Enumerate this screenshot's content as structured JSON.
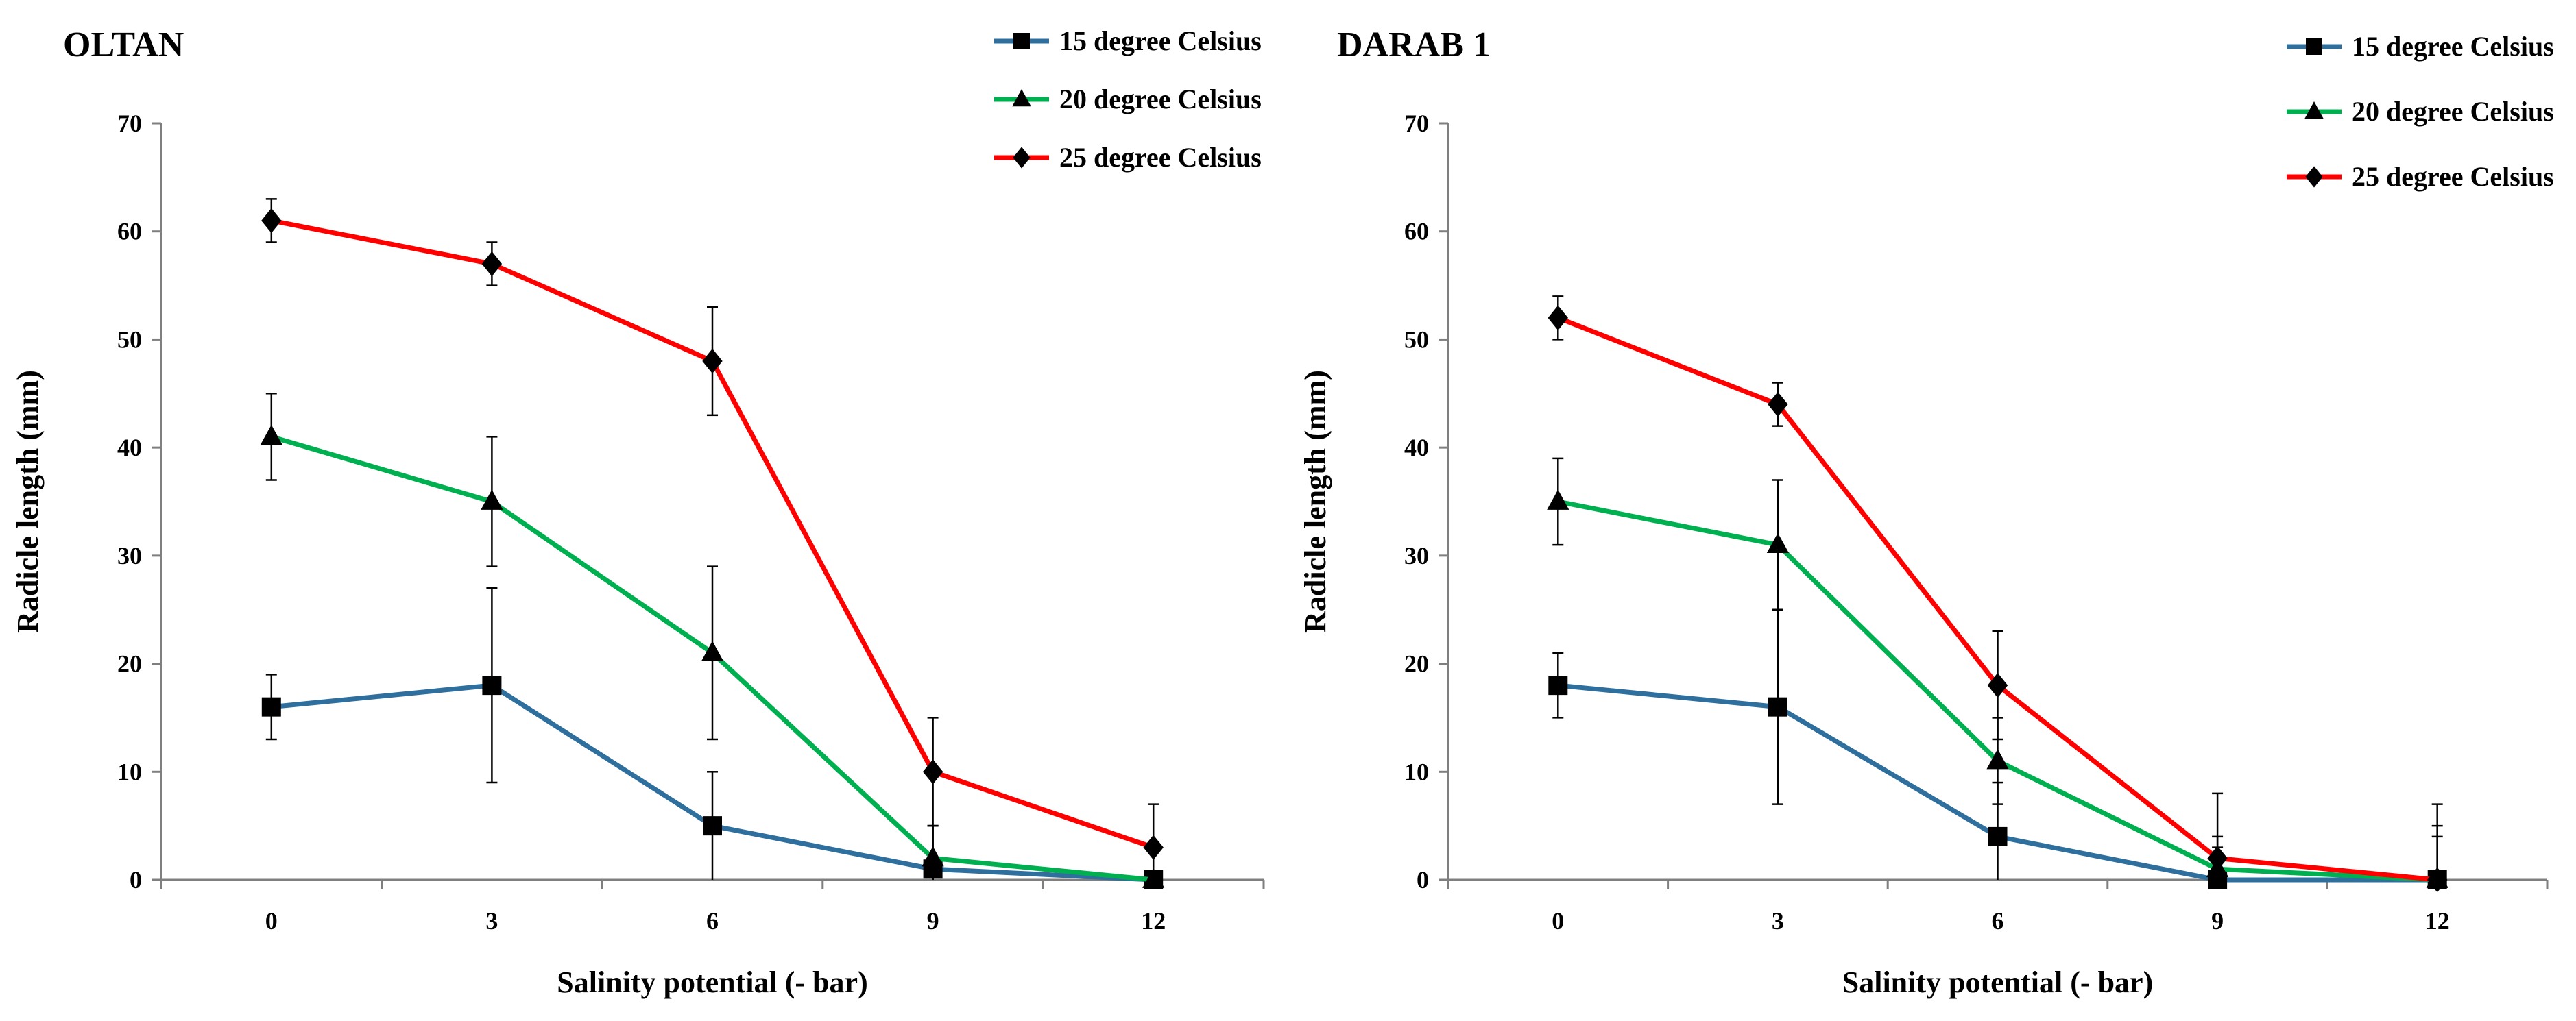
{
  "chart_data": [
    {
      "type": "line",
      "title": "OLTAN",
      "xlabel": "Salinity potential  (- bar)",
      "ylabel": "Radicle length (mm)",
      "x": [
        0,
        3,
        6,
        9,
        12
      ],
      "x_tick_labels": [
        "0",
        "3",
        "6",
        "9",
        "12"
      ],
      "ylim": [
        0,
        70
      ],
      "y_ticks": [
        0,
        10,
        20,
        30,
        40,
        50,
        60,
        70
      ],
      "y_tick_labels": [
        "0",
        "10",
        "20",
        "30",
        "40",
        "50",
        "60",
        "70"
      ],
      "legend_position": "top-right",
      "series": [
        {
          "name": "15 degree Celsius",
          "marker": "square",
          "color": "#2e6f9e",
          "values": [
            16,
            18,
            5,
            1,
            0
          ],
          "errors": [
            3,
            9,
            5,
            4,
            0
          ]
        },
        {
          "name": "20 degree Celsius",
          "marker": "triangle",
          "color": "#00b050",
          "values": [
            41,
            35,
            21,
            2,
            0
          ],
          "errors": [
            4,
            6,
            8,
            3,
            0
          ]
        },
        {
          "name": "25 degree Celsius",
          "marker": "diamond",
          "color": "#ff0000",
          "values": [
            61,
            57,
            48,
            10,
            3
          ],
          "errors": [
            2,
            2,
            5,
            5,
            4
          ]
        }
      ]
    },
    {
      "type": "line",
      "title": "DARAB 1",
      "xlabel": "Salinity potential  (- bar)",
      "ylabel": "Radicle length (mm)",
      "x": [
        0,
        3,
        6,
        9,
        12
      ],
      "x_tick_labels": [
        "0",
        "3",
        "6",
        "9",
        "12"
      ],
      "ylim": [
        0,
        70
      ],
      "y_ticks": [
        0,
        10,
        20,
        30,
        40,
        50,
        60,
        70
      ],
      "y_tick_labels": [
        "0",
        "10",
        "20",
        "30",
        "40",
        "50",
        "60",
        "70"
      ],
      "legend_position": "top-right",
      "series": [
        {
          "name": "15 degree Celsius",
          "marker": "square",
          "color": "#2e6f9e",
          "values": [
            18,
            16,
            4,
            0,
            0
          ],
          "errors": [
            3,
            9,
            5,
            3,
            7
          ]
        },
        {
          "name": "20 degree Celsius",
          "marker": "triangle",
          "color": "#00b050",
          "values": [
            35,
            31,
            11,
            1,
            0
          ],
          "errors": [
            4,
            6,
            4,
            3,
            5
          ]
        },
        {
          "name": "25 degree Celsius",
          "marker": "diamond",
          "color": "#ff0000",
          "values": [
            52,
            44,
            18,
            2,
            0
          ],
          "errors": [
            2,
            2,
            5,
            6,
            4
          ]
        }
      ]
    }
  ]
}
